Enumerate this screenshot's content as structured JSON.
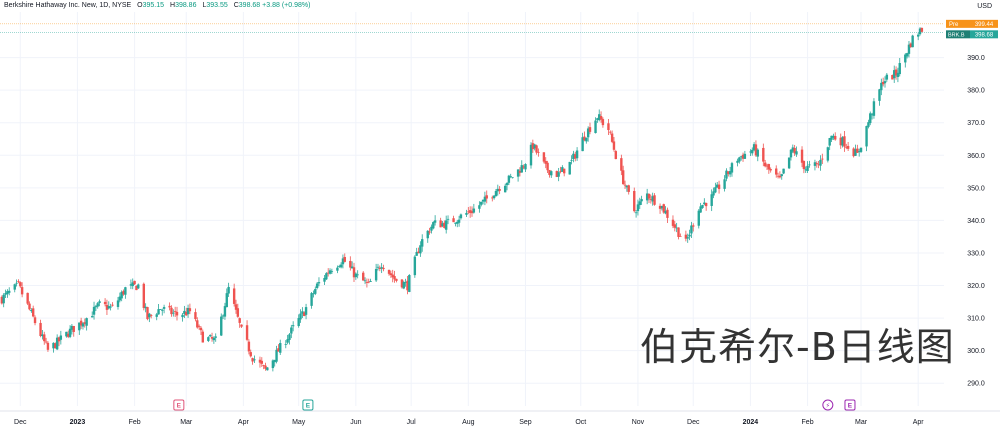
{
  "header": {
    "symbol": "Berkshire Hathaway Inc. New, 1D, NYSE",
    "open_label": "O",
    "open": "395.15",
    "high_label": "H",
    "high": "398.86",
    "low_label": "L",
    "low": "393.55",
    "close_label": "C",
    "close": "398.68",
    "change": "+3.88 (+0.98%)"
  },
  "currency": "USD",
  "watermark": "伯克希尔-B日线图",
  "price_tags": {
    "pre": {
      "label": "Pre",
      "value": "399.44",
      "color": "#f7931a"
    },
    "last": {
      "label": "BRK.B",
      "value": "398.68",
      "color": "#26a69a"
    }
  },
  "event_markers": [
    {
      "type": "E",
      "date": "2023-02-25",
      "color": "#e0567a"
    },
    {
      "type": "E",
      "date": "2023-05-06",
      "color": "#26a69a"
    },
    {
      "type": "⚡",
      "date": "2024-02-12",
      "color": "#9c27b0"
    },
    {
      "type": "E",
      "date": "2024-02-24",
      "color": "#9c27b0"
    }
  ],
  "colors": {
    "up": "#26a69a",
    "down": "#ef5350",
    "grid": "#f0f3fa",
    "axis_text": "#131722"
  },
  "chart_data": {
    "type": "candlestick",
    "title": "",
    "ylim": [
      283,
      404
    ],
    "xlim": [
      "2022-11-20",
      "2024-04-15"
    ],
    "y_ticks": [
      290,
      300,
      310,
      320,
      330,
      340,
      350,
      360,
      370,
      380,
      390
    ],
    "x_ticks": [
      {
        "label": "Dec",
        "date": "2022-12-01"
      },
      {
        "label": "2023",
        "date": "2023-01-01"
      },
      {
        "label": "Feb",
        "date": "2023-02-01"
      },
      {
        "label": "Mar",
        "date": "2023-03-01"
      },
      {
        "label": "Apr",
        "date": "2023-04-01"
      },
      {
        "label": "May",
        "date": "2023-05-01"
      },
      {
        "label": "Jun",
        "date": "2023-06-01"
      },
      {
        "label": "Jul",
        "date": "2023-07-01"
      },
      {
        "label": "Aug",
        "date": "2023-08-01"
      },
      {
        "label": "Sep",
        "date": "2023-09-01"
      },
      {
        "label": "Oct",
        "date": "2023-10-01"
      },
      {
        "label": "Nov",
        "date": "2023-11-01"
      },
      {
        "label": "Dec",
        "date": "2023-12-01"
      },
      {
        "label": "2024",
        "date": "2024-01-01"
      },
      {
        "label": "Feb",
        "date": "2024-02-01"
      },
      {
        "label": "Mar",
        "date": "2024-03-01"
      },
      {
        "label": "Apr",
        "date": "2024-04-01"
      }
    ],
    "path": [
      [
        "2022-11-21",
        316
      ],
      [
        "2022-11-30",
        320
      ],
      [
        "2022-12-08",
        310
      ],
      [
        "2022-12-16",
        300
      ],
      [
        "2022-12-28",
        306
      ],
      [
        "2023-01-06",
        310
      ],
      [
        "2023-01-13",
        314
      ],
      [
        "2023-01-20",
        313
      ],
      [
        "2023-01-27",
        319
      ],
      [
        "2023-02-03",
        320
      ],
      [
        "2023-02-08",
        310
      ],
      [
        "2023-02-15",
        313
      ],
      [
        "2023-02-24",
        311
      ],
      [
        "2023-03-03",
        312
      ],
      [
        "2023-03-10",
        304
      ],
      [
        "2023-03-17",
        303
      ],
      [
        "2023-03-24",
        319
      ],
      [
        "2023-03-31",
        306
      ],
      [
        "2023-04-06",
        298
      ],
      [
        "2023-04-13",
        294
      ],
      [
        "2023-04-20",
        300
      ],
      [
        "2023-04-27",
        306
      ],
      [
        "2023-05-04",
        312
      ],
      [
        "2023-05-11",
        320
      ],
      [
        "2023-05-18",
        325
      ],
      [
        "2023-05-25",
        328
      ],
      [
        "2023-06-01",
        323
      ],
      [
        "2023-06-08",
        320
      ],
      [
        "2023-06-15",
        327
      ],
      [
        "2023-06-22",
        322
      ],
      [
        "2023-06-29",
        320
      ],
      [
        "2023-07-06",
        333
      ],
      [
        "2023-07-13",
        339
      ],
      [
        "2023-07-20",
        339
      ],
      [
        "2023-07-27",
        341
      ],
      [
        "2023-08-03",
        343
      ],
      [
        "2023-08-10",
        346
      ],
      [
        "2023-08-17",
        350
      ],
      [
        "2023-08-24",
        353
      ],
      [
        "2023-08-31",
        357
      ],
      [
        "2023-09-05",
        363
      ],
      [
        "2023-09-12",
        356
      ],
      [
        "2023-09-19",
        354
      ],
      [
        "2023-09-26",
        358
      ],
      [
        "2023-10-03",
        366
      ],
      [
        "2023-10-10",
        372
      ],
      [
        "2023-10-16",
        368
      ],
      [
        "2023-10-23",
        354
      ],
      [
        "2023-10-30",
        343
      ],
      [
        "2023-11-06",
        348
      ],
      [
        "2023-11-13",
        345
      ],
      [
        "2023-11-20",
        339
      ],
      [
        "2023-11-27",
        333
      ],
      [
        "2023-12-04",
        344
      ],
      [
        "2023-12-11",
        347
      ],
      [
        "2023-12-18",
        353
      ],
      [
        "2023-12-25",
        359
      ],
      [
        "2024-01-03",
        362
      ],
      [
        "2024-01-10",
        356
      ],
      [
        "2024-01-17",
        352
      ],
      [
        "2024-01-24",
        362
      ],
      [
        "2024-01-31",
        356
      ],
      [
        "2024-02-07",
        357
      ],
      [
        "2024-02-14",
        366
      ],
      [
        "2024-02-21",
        364
      ],
      [
        "2024-02-28",
        360
      ],
      [
        "2024-03-06",
        372
      ],
      [
        "2024-03-13",
        383
      ],
      [
        "2024-03-20",
        385
      ],
      [
        "2024-03-25",
        391
      ],
      [
        "2024-03-30",
        397
      ],
      [
        "2024-04-03",
        398.68
      ]
    ]
  }
}
